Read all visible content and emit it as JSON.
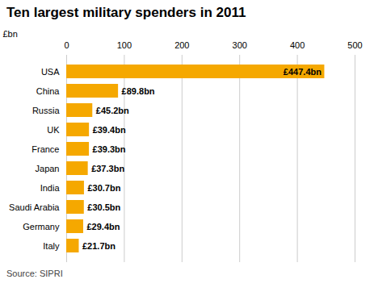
{
  "chart_data": {
    "type": "bar",
    "orientation": "horizontal",
    "title": "Ten largest military spenders in 2011",
    "source": "Source: SIPRI",
    "xlabel": "£bn",
    "categories": [
      "USA",
      "China",
      "Russia",
      "UK",
      "France",
      "Japan",
      "India",
      "Saudi Arabia",
      "Germany",
      "Italy"
    ],
    "values": [
      447.4,
      89.8,
      45.2,
      39.4,
      39.3,
      37.3,
      30.7,
      30.5,
      29.4,
      21.7
    ],
    "value_labels": [
      "£447.4bn",
      "£89.8bn",
      "£45.2bn",
      "£39.4bn",
      "£39.3bn",
      "£37.3bn",
      "£30.7bn",
      "£30.5bn",
      "£29.4bn",
      "£21.7bn"
    ],
    "data_labels": true,
    "color": "#F5A800",
    "xlim": [
      0,
      500
    ],
    "xticks": [
      0,
      100,
      200,
      300,
      400,
      500
    ],
    "grid": true
  }
}
